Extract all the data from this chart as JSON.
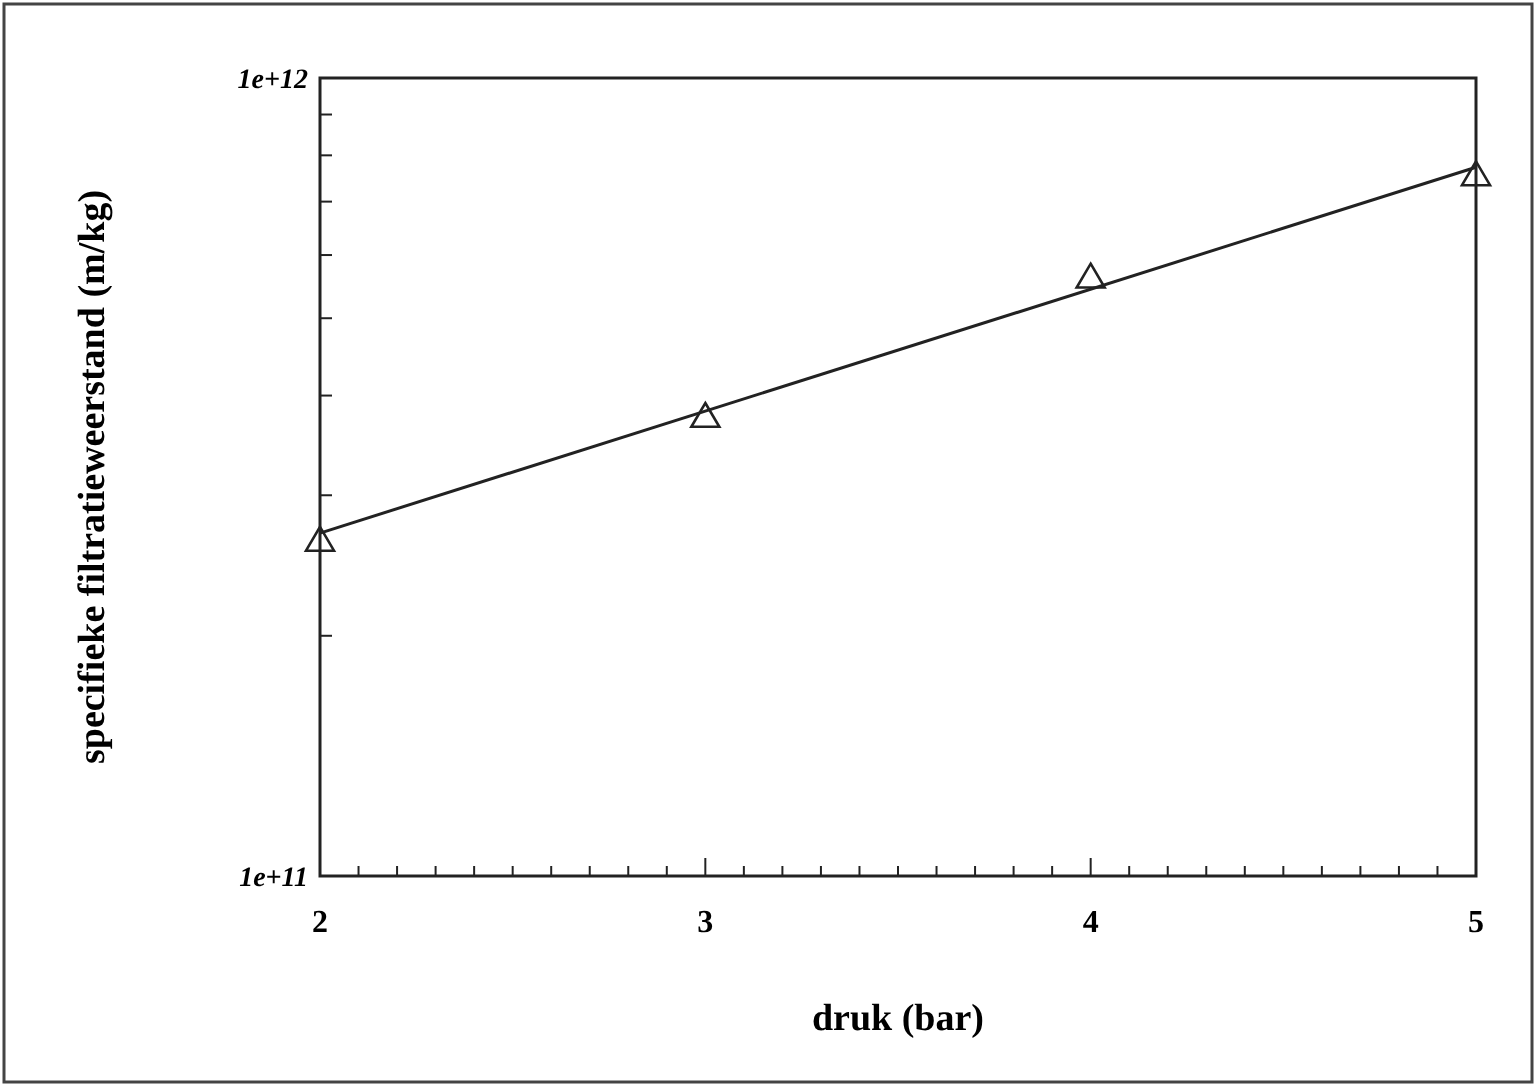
{
  "chart_data": {
    "type": "scatter",
    "xlabel": "druk (bar)",
    "ylabel": "specifieke filtratieweerstand (m/kg)",
    "log": "y",
    "marker": "triangle",
    "xlim": [
      2,
      5
    ],
    "ylim": [
      100000000000,
      1000000000000
    ],
    "xticks": [
      2,
      {
        "value": 2.1,
        "label": null
      },
      {
        "value": 2.2,
        "label": null
      },
      {
        "value": 2.3,
        "label": null
      },
      {
        "value": 2.4,
        "label": null
      },
      {
        "value": 2.5,
        "label": null
      },
      {
        "value": 2.6,
        "label": null
      },
      {
        "value": 2.7,
        "label": null
      },
      {
        "value": 2.8,
        "label": null
      },
      {
        "value": 2.9,
        "label": null
      },
      3,
      {
        "value": 3.1,
        "label": null
      },
      {
        "value": 3.2,
        "label": null
      },
      {
        "value": 3.3,
        "label": null
      },
      {
        "value": 3.4,
        "label": null
      },
      {
        "value": 3.5,
        "label": null
      },
      {
        "value": 3.6,
        "label": null
      },
      {
        "value": 3.7,
        "label": null
      },
      {
        "value": 3.8,
        "label": null
      },
      {
        "value": 3.9,
        "label": null
      },
      4,
      {
        "value": 4.1,
        "label": null
      },
      {
        "value": 4.2,
        "label": null
      },
      {
        "value": 4.3,
        "label": null
      },
      {
        "value": 4.4,
        "label": null
      },
      {
        "value": 4.5,
        "label": null
      },
      {
        "value": 4.6,
        "label": null
      },
      {
        "value": 4.7,
        "label": null
      },
      {
        "value": 4.8,
        "label": null
      },
      {
        "value": 4.9,
        "label": null
      },
      5
    ],
    "yticks": [
      {
        "value": 100000000000,
        "label": "1e+11"
      },
      {
        "value": 200000000000,
        "label": null
      },
      {
        "value": 300000000000,
        "label": null
      },
      {
        "value": 400000000000,
        "label": null
      },
      {
        "value": 500000000000,
        "label": null
      },
      {
        "value": 600000000000,
        "label": null
      },
      {
        "value": 700000000000,
        "label": null
      },
      {
        "value": 800000000000,
        "label": null
      },
      {
        "value": 900000000000,
        "label": null
      },
      {
        "value": 1000000000000,
        "label": "1e+12"
      }
    ],
    "grid": false,
    "series": [
      {
        "color": "#222222",
        "x": [
          2,
          3,
          4,
          5
        ],
        "values": [
          263000000000,
          376000000000,
          562000000000,
          755000000000
        ]
      },
      {
        "type": "line",
        "color": "#222222",
        "marker": "none",
        "line_style": "solid",
        "x": [
          2,
          5
        ],
        "values": [
          269000000000,
          773000000000
        ]
      }
    ]
  }
}
